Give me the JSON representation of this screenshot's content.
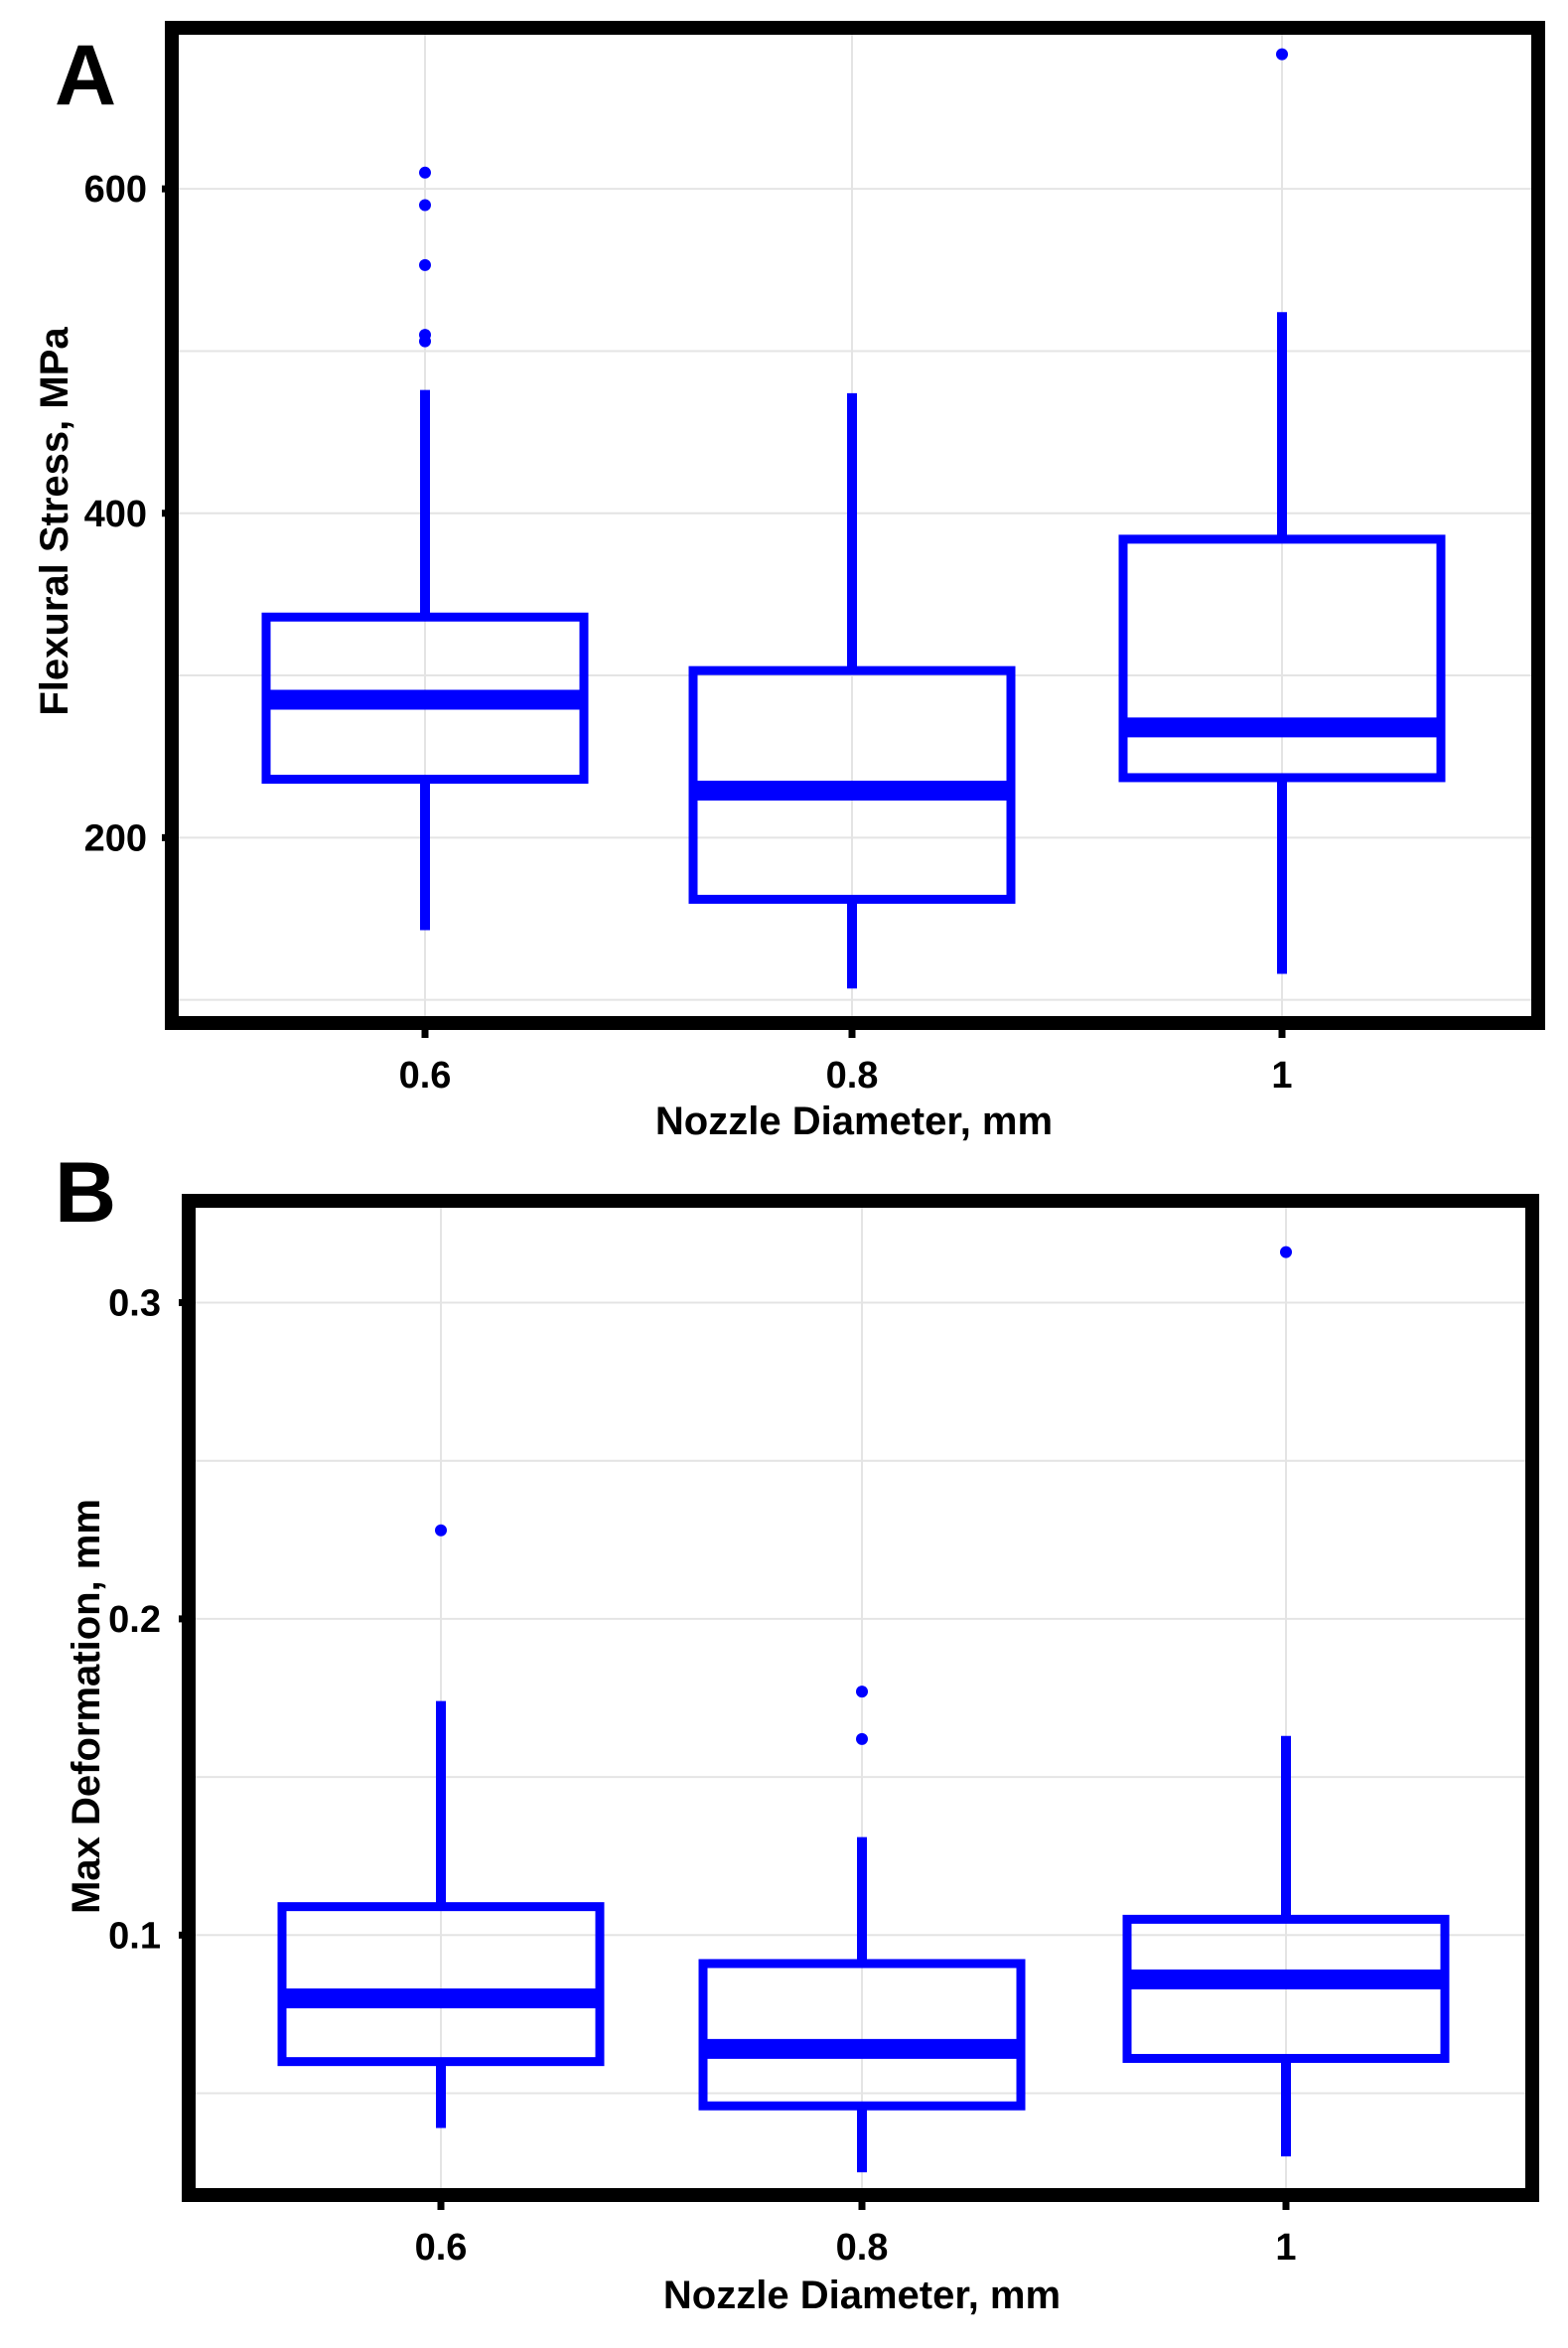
{
  "chart_data": [
    {
      "type": "boxplot",
      "panel": "A",
      "xlabel": "Nozzle Diameter, mm",
      "ylabel": "Flexural Stress, MPa",
      "categories": [
        "0.6",
        "0.8",
        "1"
      ],
      "ylim": [
        90,
        695
      ],
      "yticks": [
        200,
        400,
        600
      ],
      "ytick_labels": [
        "200",
        "400",
        "600"
      ],
      "grid": true,
      "color": "#0000ff",
      "boxes": [
        {
          "category": "0.6",
          "whisker_low": 143,
          "q1": 236,
          "median": 285,
          "q3": 336,
          "whisker_high": 476,
          "outliers": [
            506,
            510,
            553,
            590,
            610
          ]
        },
        {
          "category": "0.8",
          "whisker_low": 107,
          "q1": 162,
          "median": 229,
          "q3": 303,
          "whisker_high": 474,
          "outliers": []
        },
        {
          "category": "1",
          "whisker_low": 116,
          "q1": 237,
          "median": 268,
          "q3": 384,
          "whisker_high": 524,
          "outliers": [
            683
          ]
        }
      ]
    },
    {
      "type": "boxplot",
      "panel": "B",
      "xlabel": "Nozzle Diameter, mm",
      "ylabel": "Max Deformation, mm",
      "categories": [
        "0.6",
        "0.8",
        "1"
      ],
      "ylim": [
        0.02,
        0.33
      ],
      "yticks": [
        0.1,
        0.2,
        0.3
      ],
      "ytick_labels": [
        "0.1",
        "0.2",
        "0.3"
      ],
      "grid": true,
      "color": "#0000ff",
      "boxes": [
        {
          "category": "0.6",
          "whisker_low": 0.039,
          "q1": 0.06,
          "median": 0.08,
          "q3": 0.109,
          "whisker_high": 0.174,
          "outliers": [
            0.228
          ]
        },
        {
          "category": "0.8",
          "whisker_low": 0.025,
          "q1": 0.046,
          "median": 0.064,
          "q3": 0.091,
          "whisker_high": 0.131,
          "outliers": [
            0.162,
            0.177
          ]
        },
        {
          "category": "1",
          "whisker_low": 0.03,
          "q1": 0.061,
          "median": 0.086,
          "q3": 0.105,
          "whisker_high": 0.163,
          "outliers": [
            0.316
          ]
        }
      ]
    }
  ]
}
